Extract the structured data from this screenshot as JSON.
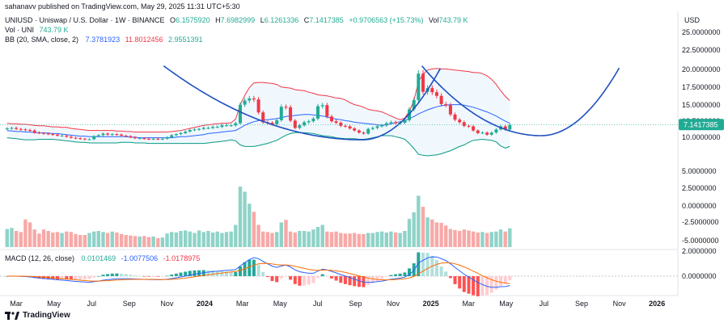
{
  "header": {
    "publisher": "sahanavv published on TradingView.com, May 29, 2025 11:31 UTC+5:30",
    "symbol": "UNIUSD · Uniswap / U.S. Dollar · 1W · BINANCE",
    "o_label": "O",
    "open": "6.1575920",
    "h_label": "H",
    "high": "7.6982999",
    "l_label": "L",
    "low": "6.1261336",
    "c_label": "C",
    "close": "7.1417385",
    "change": "+0.9706563 (+15.73%)",
    "vol_label": "Vol",
    "vol": "743.79 K",
    "vol_line_label": "Vol · UNI",
    "vol_line_value": "743.79 K",
    "bb_label": "BB (20, SMA, close, 2)",
    "bb_basis": "7.3781923",
    "bb_upper": "11.8012456",
    "bb_lower": "2.9551391",
    "macd_label": "MACD (12, 26, close)",
    "macd_hist": "0.0101469",
    "macd_line": "-1.0077506",
    "macd_signal": "-1.0178975"
  },
  "axis": {
    "currency": "USD",
    "price_ticks": [
      "25.0000000",
      "22.5000000",
      "20.0000000",
      "17.5000000",
      "15.0000000",
      "12.5000000",
      "10.0000000",
      "5.0000000",
      "2.5000000",
      "0.0000000",
      "-2.5000000",
      "-5.0000000",
      "2.0000000",
      "0.0000000"
    ],
    "last_price_label": "7.1417385",
    "time_ticks": [
      "Mar",
      "May",
      "Jul",
      "Sep",
      "Nov",
      "2024",
      "Mar",
      "May",
      "Jul",
      "Sep",
      "Nov",
      "2025",
      "Mar",
      "May",
      "Jul",
      "Sep",
      "Nov",
      "2026"
    ]
  },
  "footer": {
    "brand": "TradingView"
  },
  "colors": {
    "up": "#22ab94",
    "down": "#f23645",
    "bb_upper": "#f23645",
    "bb_basis": "#2962ff",
    "bb_lower": "#089981",
    "bb_fill": "#e3f2fd",
    "curve": "#1e4fbf",
    "macd_line": "#2962ff",
    "signal": "#ff6d00"
  },
  "chart_data": {
    "type": "candlestick",
    "interval": "1W",
    "x_range": [
      "2023-02",
      "2026-03"
    ],
    "y_range": [
      0,
      25
    ],
    "price_closes": [
      6.4,
      6.5,
      6.3,
      6.2,
      6.1,
      6.0,
      5.6,
      5.5,
      5.4,
      5.3,
      5.2,
      5.0,
      5.0,
      4.8,
      4.6,
      4.5,
      4.4,
      4.3,
      4.3,
      4.9,
      5.1,
      5.4,
      5.2,
      5.3,
      5.2,
      5.0,
      4.9,
      4.7,
      4.5,
      4.5,
      4.4,
      4.3,
      4.4,
      4.3,
      4.4,
      4.7,
      5.1,
      5.3,
      5.5,
      5.8,
      6.1,
      6.2,
      6.3,
      6.5,
      6.5,
      6.7,
      6.7,
      7.0,
      7.0,
      7.0,
      7.4,
      11.0,
      11.8,
      12.2,
      12.0,
      9.5,
      7.6,
      7.5,
      7.2,
      8.0,
      10.6,
      10.5,
      7.9,
      6.5,
      7.0,
      7.6,
      7.8,
      8.3,
      10.7,
      10.9,
      8.7,
      7.8,
      7.5,
      6.9,
      6.8,
      6.4,
      6.0,
      5.6,
      5.4,
      6.3,
      6.5,
      6.8,
      7.0,
      7.4,
      7.6,
      7.4,
      7.5,
      8.0,
      10.1,
      11.9,
      17.0,
      13.5,
      14.2,
      13.4,
      12.7,
      11.1,
      10.9,
      9.1,
      8.1,
      7.6,
      6.9,
      6.8,
      6.0,
      5.5,
      5.6,
      5.2,
      5.6,
      6.2,
      6.8,
      6.2,
      7.1
    ],
    "bb_upper": [
      7.4,
      7.3,
      7.3,
      7.2,
      7.2,
      7.1,
      7.0,
      6.9,
      6.9,
      6.8,
      6.7,
      6.7,
      6.6,
      6.6,
      6.4,
      6.3,
      6.2,
      6.1,
      6.0,
      6.0,
      6.0,
      6.0,
      6.0,
      6.0,
      5.9,
      5.9,
      5.8,
      5.8,
      5.7,
      5.7,
      5.7,
      5.7,
      5.7,
      5.7,
      5.7,
      5.7,
      5.8,
      5.9,
      6.0,
      6.2,
      6.4,
      6.6,
      6.8,
      7.0,
      7.1,
      7.2,
      7.3,
      7.4,
      7.4,
      7.5,
      8.2,
      11.0,
      12.8,
      14.3,
      15.2,
      15.3,
      15.3,
      15.2,
      15.1,
      14.9,
      14.4,
      14.3,
      14.2,
      13.9,
      13.8,
      13.7,
      13.4,
      13.2,
      12.9,
      12.8,
      12.7,
      12.5,
      12.3,
      12.2,
      11.9,
      11.4,
      11.0,
      10.8,
      10.5,
      10.1,
      9.9,
      9.8,
      9.6,
      9.2,
      8.8,
      8.4,
      8.1,
      8.4,
      9.7,
      11.8,
      15.4,
      16.9,
      17.7,
      17.9,
      18.0,
      17.9,
      17.9,
      17.8,
      17.7,
      17.6,
      17.5,
      17.4,
      17.2,
      17.2,
      17.0,
      16.6,
      15.9,
      14.9,
      13.7,
      12.6,
      11.8
    ],
    "bb_basis": [
      6.0,
      5.9,
      5.8,
      5.8,
      5.7,
      5.7,
      5.6,
      5.6,
      5.5,
      5.5,
      5.4,
      5.4,
      5.3,
      5.2,
      5.1,
      5.0,
      4.9,
      4.9,
      4.8,
      4.8,
      4.8,
      4.8,
      4.8,
      4.8,
      4.8,
      4.8,
      4.8,
      4.7,
      4.7,
      4.6,
      4.6,
      4.6,
      4.6,
      4.6,
      4.6,
      4.6,
      4.6,
      4.7,
      4.8,
      4.8,
      4.9,
      5.0,
      5.1,
      5.2,
      5.4,
      5.5,
      5.6,
      5.7,
      5.8,
      5.9,
      6.0,
      6.5,
      7.0,
      7.4,
      7.7,
      7.9,
      8.0,
      8.1,
      8.2,
      8.3,
      8.5,
      8.7,
      8.8,
      8.9,
      9.0,
      9.1,
      9.1,
      9.0,
      8.9,
      8.8,
      8.6,
      8.4,
      8.2,
      8.1,
      7.9,
      7.8,
      7.6,
      7.5,
      7.4,
      7.3,
      7.2,
      7.1,
      7.0,
      7.1,
      7.3,
      7.5,
      7.7,
      7.9,
      8.3,
      8.7,
      9.2,
      9.6,
      10.0,
      10.3,
      10.6,
      10.8,
      10.9,
      11.0,
      11.0,
      11.0,
      10.9,
      10.7,
      10.5,
      10.2,
      9.9,
      9.6,
      9.2,
      8.8,
      8.3,
      7.8,
      7.4
    ],
    "bb_lower": [
      4.6,
      4.5,
      4.4,
      4.3,
      4.2,
      4.2,
      4.2,
      4.3,
      4.3,
      4.3,
      4.3,
      4.2,
      4.1,
      4.0,
      3.9,
      3.8,
      3.7,
      3.7,
      3.6,
      3.6,
      3.6,
      3.6,
      3.6,
      3.6,
      3.6,
      3.7,
      3.7,
      3.7,
      3.6,
      3.6,
      3.6,
      3.5,
      3.5,
      3.5,
      3.5,
      3.5,
      3.5,
      3.5,
      3.5,
      3.5,
      3.5,
      3.5,
      3.5,
      3.5,
      3.6,
      3.7,
      3.8,
      3.9,
      4.0,
      4.2,
      4.0,
      3.2,
      2.9,
      2.9,
      2.9,
      3.1,
      3.3,
      3.5,
      3.8,
      4.1,
      4.6,
      5.1,
      5.4,
      5.6,
      5.6,
      5.6,
      5.5,
      5.4,
      5.2,
      5.0,
      4.9,
      4.8,
      4.6,
      4.5,
      4.4,
      4.4,
      4.4,
      4.3,
      4.3,
      4.4,
      4.6,
      4.8,
      5.0,
      5.0,
      5.0,
      4.8,
      4.6,
      4.3,
      3.5,
      2.5,
      1.4,
      1.2,
      1.1,
      1.2,
      1.3,
      1.5,
      1.8,
      2.1,
      2.5,
      2.9,
      3.2,
      3.7,
      4.1,
      4.2,
      4.3,
      4.2,
      4.1,
      3.8,
      3.0,
      2.6,
      2.9
    ],
    "volume_k": [
      720,
      760,
      640,
      600,
      1100,
      980,
      700,
      540,
      700,
      640,
      580,
      600,
      560,
      620,
      600,
      520,
      480,
      480,
      560,
      620,
      640,
      600,
      560,
      620,
      580,
      520,
      480,
      460,
      440,
      420,
      440,
      400,
      420,
      360,
      380,
      540,
      600,
      580,
      640,
      660,
      620,
      560,
      660,
      600,
      640,
      580,
      620,
      560,
      600,
      620,
      880,
      2400,
      2200,
      1720,
      1400,
      880,
      620,
      600,
      560,
      600,
      980,
      1080,
      620,
      580,
      640,
      640,
      620,
      700,
      800,
      880,
      620,
      600,
      620,
      560,
      540,
      540,
      560,
      520,
      520,
      560,
      560,
      600,
      620,
      580,
      620,
      580,
      560,
      640,
      1120,
      1380,
      2040,
      1600,
      1180,
      1100,
      980,
      960,
      860,
      720,
      680,
      640,
      700,
      660,
      620,
      580,
      600,
      560,
      600,
      620,
      700,
      620,
      744
    ],
    "curves": [
      {
        "from": "2023-10",
        "vertex": [
          "2024-08",
          4.2
        ],
        "to": "2024-12"
      },
      {
        "from": "2024-11",
        "vertex": [
          "2025-05",
          5.0
        ],
        "to": "2025-09"
      }
    ]
  }
}
